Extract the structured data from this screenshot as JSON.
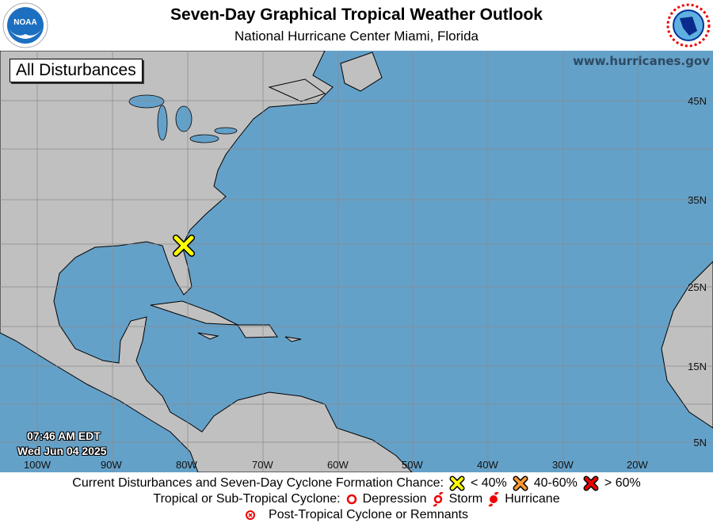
{
  "header": {
    "title": "Seven-Day Graphical Tropical Weather Outlook",
    "subtitle": "National Hurricane Center  Miami, Florida",
    "logo_left": "NOAA",
    "logo_right": "NATIONAL WEATHER SERVICE"
  },
  "map": {
    "view_label": "All Disturbances",
    "website": "www.hurricanes.gov",
    "lat_labels": [
      "45N",
      "35N",
      "25N",
      "15N",
      "5N"
    ],
    "lon_labels": [
      "100W",
      "90W",
      "80W",
      "70W",
      "60W",
      "50W",
      "40W",
      "30W",
      "20W"
    ],
    "time": "07:46 AM EDT",
    "date": "Wed Jun 04 2025",
    "ocean_color": "#64a1c9",
    "land_color": "#c0c0c0",
    "disturbances": [
      {
        "lat": 30.5,
        "lon": -80.5,
        "chance": "< 40%",
        "color": "#ffff00",
        "icon": "x-marker-icon"
      }
    ]
  },
  "legend": {
    "row1_label": "Current Disturbances and Seven-Day Cyclone Formation Chance:",
    "chances": [
      {
        "label": "< 40%",
        "color": "#ffff00"
      },
      {
        "label": "40-60%",
        "color": "#ff9933"
      },
      {
        "label": "> 60%",
        "color": "#ee0000"
      }
    ],
    "row2_label": "Tropical or Sub-Tropical Cyclone:",
    "cyclones": [
      {
        "label": "Depression",
        "icon": "depression-icon"
      },
      {
        "label": "Storm",
        "icon": "storm-icon"
      },
      {
        "label": "Hurricane",
        "icon": "hurricane-icon"
      }
    ],
    "row3_label": "Post-Tropical Cyclone or Remnants"
  }
}
